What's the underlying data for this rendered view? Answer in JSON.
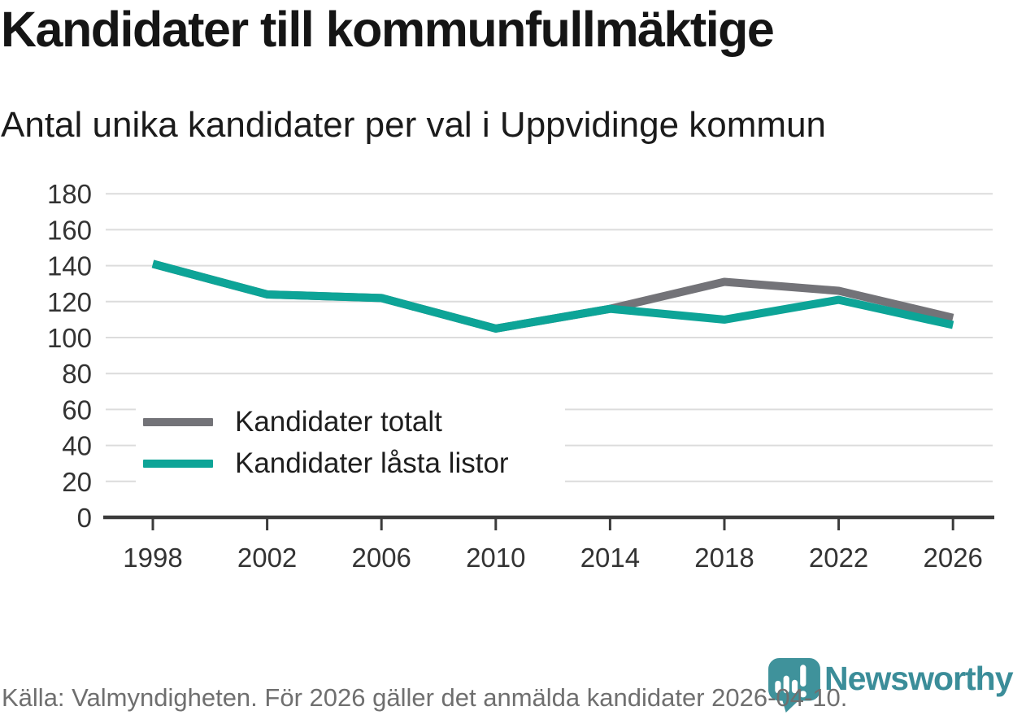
{
  "header": {
    "title": "Kandidater till kommunfullmäktige",
    "subtitle": "Antal unika kandidater per val i Uppvidinge kommun"
  },
  "chart_data": {
    "type": "line",
    "x": [
      1998,
      2002,
      2006,
      2010,
      2014,
      2018,
      2022,
      2026
    ],
    "x_labels": [
      "1998",
      "2002",
      "2006",
      "2010",
      "2014",
      "2018",
      "2022",
      "2026"
    ],
    "series": [
      {
        "name": "Kandidater totalt",
        "color": "#737378",
        "values": [
          141,
          124,
          122,
          105,
          116,
          131,
          126,
          111
        ]
      },
      {
        "name": "Kandidater låsta listor",
        "color": "#0da497",
        "values": [
          141,
          124,
          122,
          105,
          116,
          110,
          121,
          107
        ]
      }
    ],
    "ylim": [
      0,
      180
    ],
    "ytick_step": 20,
    "grid": true,
    "gridline_color": "#dcdcdc",
    "axis_color": "#3b3b3b",
    "tick_label_color": "#333333",
    "line_width": 10,
    "legend_position": "inside-left"
  },
  "footer": {
    "source": "Källa: Valmyndigheten. För 2026 gäller det anmälda kandidater 2026-04-10."
  },
  "logo": {
    "text": "Newsworthy",
    "text_color": "#3b8d99",
    "icon": "newsworthy-pin-barchart-icon",
    "icon_color": "#3f929b"
  }
}
